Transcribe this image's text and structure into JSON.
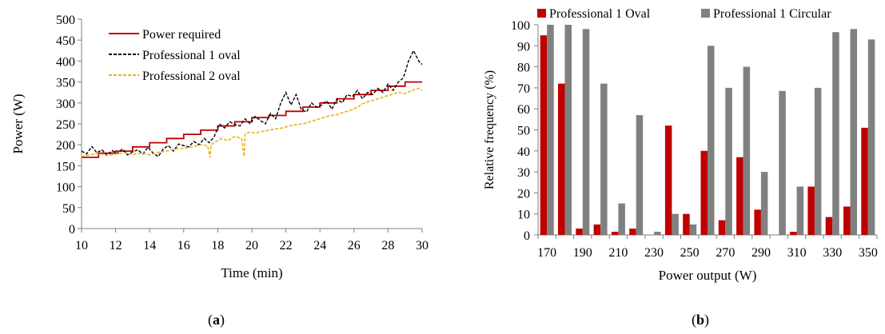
{
  "panel_a": {
    "caption_open": "(",
    "caption_letter": "a",
    "caption_close": ")"
  },
  "panel_b": {
    "caption_open": "(",
    "caption_letter": "b",
    "caption_close": ")"
  },
  "colors": {
    "power_required": "#c00000",
    "professional1": "#000000",
    "professional2": "#e6b417",
    "oval_bar": "#c00000",
    "circular_bar": "#808080",
    "axis": "#7f7f7f"
  },
  "chart_data": [
    {
      "type": "line",
      "title": "",
      "xlabel": "Time (min)",
      "ylabel": "Power (W)",
      "xlim": [
        10,
        30
      ],
      "ylim": [
        0,
        500
      ],
      "xticks": [
        "10",
        "12",
        "14",
        "16",
        "18",
        "20",
        "22",
        "24",
        "26",
        "28",
        "30"
      ],
      "yticks": [
        "0",
        "50",
        "100",
        "150",
        "200",
        "250",
        "300",
        "350",
        "400",
        "450",
        "500"
      ],
      "legend_position": "top-left",
      "series": [
        {
          "name": "Power required",
          "style": "solid",
          "x": [
            10,
            11,
            11,
            12,
            12,
            13,
            13,
            14,
            14,
            15,
            15,
            16,
            16,
            17,
            17,
            18,
            18,
            19,
            19,
            20,
            20,
            21,
            21,
            22,
            22,
            23,
            23,
            24,
            24,
            25,
            25,
            26,
            26,
            27,
            27,
            28,
            28,
            29,
            29,
            30
          ],
          "y": [
            170,
            170,
            180,
            180,
            185,
            185,
            195,
            195,
            205,
            205,
            215,
            215,
            225,
            225,
            235,
            235,
            245,
            245,
            255,
            255,
            265,
            265,
            270,
            270,
            280,
            280,
            290,
            290,
            300,
            300,
            310,
            310,
            320,
            320,
            330,
            330,
            340,
            340,
            350,
            350
          ]
        },
        {
          "name": "Professional 1 oval",
          "style": "dashed",
          "x": [
            10,
            10.3,
            10.6,
            10.9,
            11.2,
            11.5,
            11.8,
            12.1,
            12.4,
            12.7,
            13.0,
            13.3,
            13.6,
            13.9,
            14.2,
            14.5,
            14.8,
            15.1,
            15.4,
            15.7,
            16.0,
            16.3,
            16.6,
            16.9,
            17.2,
            17.5,
            17.8,
            18.1,
            18.4,
            18.7,
            19.0,
            19.3,
            19.6,
            19.9,
            20.2,
            20.5,
            20.8,
            21.1,
            21.4,
            21.7,
            22.0,
            22.3,
            22.6,
            22.9,
            23.2,
            23.5,
            23.8,
            24.1,
            24.4,
            24.7,
            25.0,
            25.3,
            25.6,
            25.9,
            26.2,
            26.5,
            26.8,
            27.1,
            27.4,
            27.7,
            28.0,
            28.3,
            28.6,
            28.9,
            29.2,
            29.5,
            29.8,
            30.0
          ],
          "y": [
            185,
            178,
            196,
            181,
            188,
            175,
            186,
            179,
            190,
            176,
            183,
            188,
            178,
            194,
            180,
            172,
            190,
            198,
            185,
            202,
            198,
            195,
            208,
            200,
            215,
            205,
            220,
            250,
            240,
            255,
            248,
            245,
            262,
            250,
            268,
            258,
            250,
            275,
            262,
            300,
            325,
            295,
            320,
            285,
            278,
            300,
            290,
            295,
            305,
            285,
            310,
            300,
            320,
            315,
            330,
            310,
            325,
            320,
            335,
            325,
            345,
            330,
            350,
            360,
            400,
            425,
            400,
            392
          ]
        },
        {
          "name": "Professional 2 oval",
          "style": "dashed",
          "x": [
            10,
            10.5,
            11.0,
            11.5,
            12.0,
            12.5,
            13.0,
            13.5,
            14.0,
            14.5,
            15.0,
            15.5,
            16.0,
            16.5,
            17.0,
            17.4,
            17.55,
            17.6,
            17.8,
            18.2,
            18.6,
            19.0,
            19.4,
            19.55,
            19.6,
            19.8,
            20.2,
            20.6,
            21.0,
            21.4,
            21.8,
            22.2,
            22.6,
            23.0,
            23.4,
            23.8,
            24.2,
            24.6,
            25.0,
            25.4,
            25.8,
            26.2,
            26.6,
            27.0,
            27.4,
            27.8,
            28.2,
            28.6,
            29.0,
            29.4,
            29.8,
            30.0
          ],
          "y": [
            172,
            176,
            180,
            174,
            178,
            181,
            177,
            180,
            176,
            182,
            185,
            190,
            192,
            195,
            200,
            198,
            170,
            200,
            205,
            215,
            210,
            220,
            215,
            172,
            225,
            230,
            228,
            232,
            235,
            238,
            240,
            245,
            248,
            250,
            255,
            260,
            265,
            270,
            272,
            278,
            282,
            290,
            300,
            305,
            310,
            315,
            320,
            325,
            322,
            330,
            335,
            330
          ]
        }
      ]
    },
    {
      "type": "bar",
      "title": "",
      "xlabel": "Power output (W)",
      "ylabel": "Relative frequency (%)",
      "ylim": [
        0,
        100
      ],
      "yticks": [
        "0",
        "10",
        "20",
        "30",
        "40",
        "50",
        "60",
        "70",
        "80",
        "90",
        "100"
      ],
      "tick_labels": [
        "170",
        "190",
        "210",
        "230",
        "250",
        "270",
        "290",
        "310",
        "330",
        "350"
      ],
      "legend_position": "top",
      "categories": [
        170,
        180,
        190,
        200,
        210,
        220,
        230,
        240,
        250,
        260,
        270,
        280,
        290,
        300,
        310,
        320,
        330,
        340,
        350
      ],
      "series": [
        {
          "name": "Professional 1 Oval",
          "values": [
            95,
            72,
            3,
            5,
            1.5,
            3,
            0,
            52,
            10,
            40,
            7,
            37,
            12,
            0,
            1.5,
            23,
            8.5,
            13.5,
            51
          ]
        },
        {
          "name": "Professional 1 Circular",
          "values": [
            100,
            100,
            98,
            72,
            15,
            57,
            1.5,
            10,
            5,
            90,
            70,
            80,
            30,
            68.5,
            23,
            70,
            96.5,
            98,
            93
          ]
        }
      ]
    }
  ]
}
